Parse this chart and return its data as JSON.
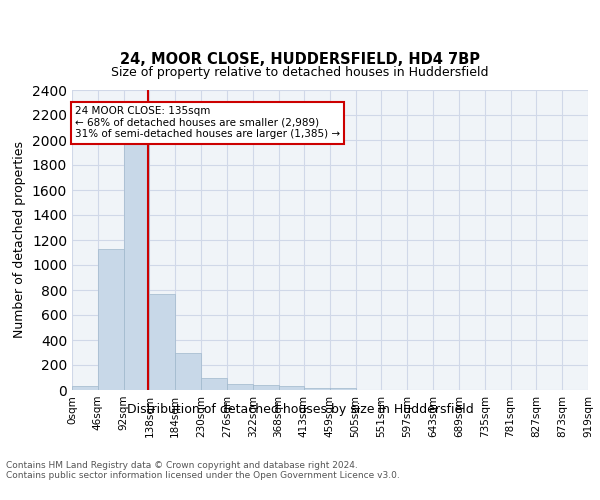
{
  "title1": "24, MOOR CLOSE, HUDDERSFIELD, HD4 7BP",
  "title2": "Size of property relative to detached houses in Huddersfield",
  "xlabel": "Distribution of detached houses by size in Huddersfield",
  "ylabel": "Number of detached properties",
  "bin_edges": [
    0,
    46,
    92,
    138,
    184,
    230,
    276,
    322,
    368,
    413,
    459,
    505,
    551,
    597,
    643,
    689,
    735,
    781,
    827,
    873,
    919
  ],
  "bar_heights": [
    35,
    1130,
    1980,
    770,
    300,
    100,
    45,
    40,
    30,
    20,
    20,
    0,
    0,
    0,
    0,
    0,
    0,
    0,
    0,
    0
  ],
  "bar_color": "#c8d8e8",
  "bar_edgecolor": "#a0b8cc",
  "grid_color": "#d0d8e8",
  "property_line_x": 135,
  "property_line_color": "#cc0000",
  "annotation_text": "24 MOOR CLOSE: 135sqm\n← 68% of detached houses are smaller (2,989)\n31% of semi-detached houses are larger (1,385) →",
  "annotation_box_color": "#ffffff",
  "annotation_box_edgecolor": "#cc0000",
  "ylim": [
    0,
    2400
  ],
  "yticks": [
    0,
    200,
    400,
    600,
    800,
    1000,
    1200,
    1400,
    1600,
    1800,
    2000,
    2200,
    2400
  ],
  "tick_labels": [
    "0sqm",
    "46sqm",
    "92sqm",
    "138sqm",
    "184sqm",
    "230sqm",
    "276sqm",
    "322sqm",
    "368sqm",
    "413sqm",
    "459sqm",
    "505sqm",
    "551sqm",
    "597sqm",
    "643sqm",
    "689sqm",
    "735sqm",
    "781sqm",
    "827sqm",
    "873sqm",
    "919sqm"
  ],
  "footer_text": "Contains HM Land Registry data © Crown copyright and database right 2024.\nContains public sector information licensed under the Open Government Licence v3.0.",
  "background_color": "#f0f4f8"
}
